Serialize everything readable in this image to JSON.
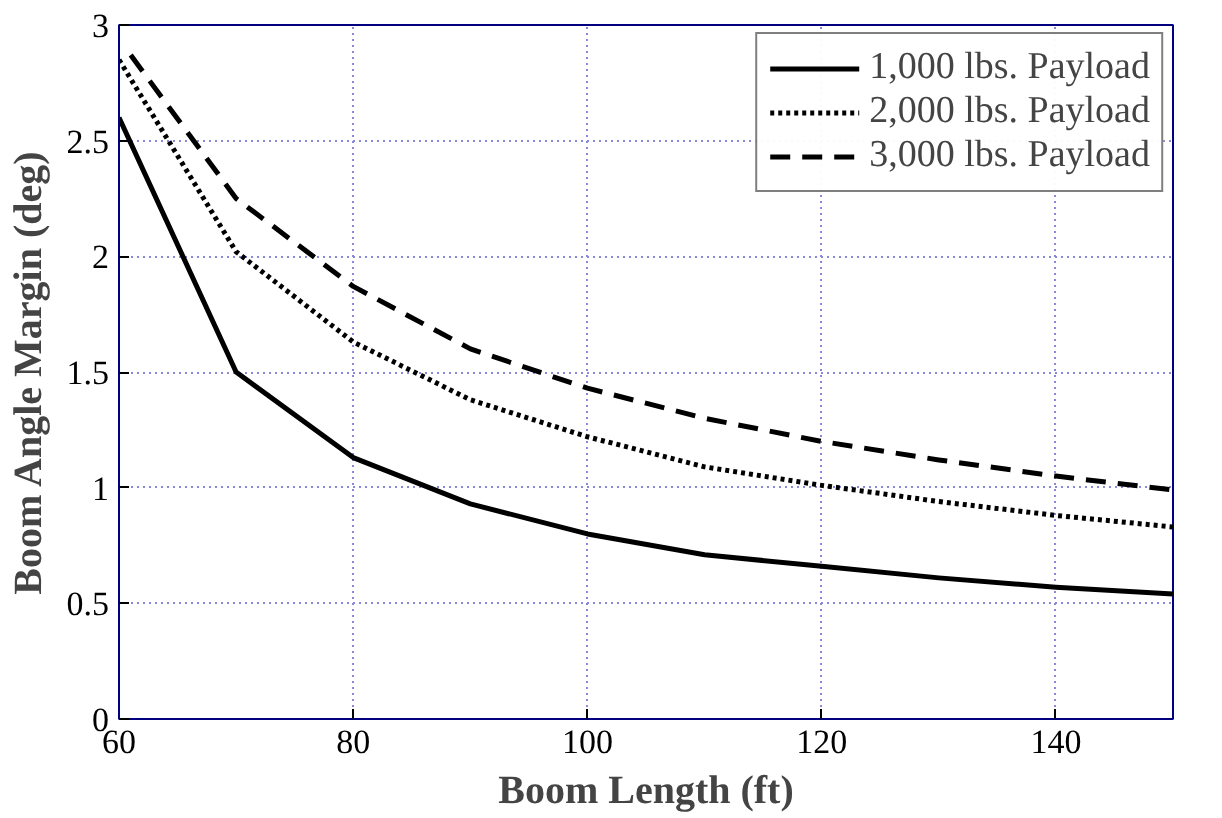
{
  "chart_data": {
    "type": "line",
    "xlabel": "Boom Length (ft)",
    "ylabel": "Boom Angle Margin (deg)",
    "xlim": [
      60,
      150
    ],
    "xticks": [
      60,
      80,
      100,
      120,
      140
    ],
    "ylim": [
      0,
      3
    ],
    "yticks": [
      0,
      0.5,
      1,
      1.5,
      2,
      2.5,
      3
    ],
    "grid": true,
    "legend": "top right",
    "marker": "none",
    "series": [
      {
        "name": "1,000 lbs. Payload",
        "color": "#000000",
        "line_style": "solid",
        "x": [
          60,
          70,
          80,
          90,
          100,
          110,
          120,
          130,
          140,
          150
        ],
        "values": [
          2.6,
          1.5,
          1.13,
          0.93,
          0.8,
          0.71,
          0.66,
          0.61,
          0.57,
          0.54
        ]
      },
      {
        "name": "2,000 lbs. Payload",
        "color": "#000000",
        "line_style": "dotted",
        "x": [
          60,
          70,
          80,
          90,
          100,
          110,
          120,
          130,
          140,
          150
        ],
        "values": [
          2.85,
          2.02,
          1.63,
          1.38,
          1.22,
          1.09,
          1.01,
          0.94,
          0.88,
          0.83
        ]
      },
      {
        "name": "3,000 lbs. Payload",
        "color": "#000000",
        "line_style": "dashed",
        "x": [
          61,
          70,
          80,
          90,
          100,
          110,
          120,
          130,
          140,
          150
        ],
        "values": [
          2.87,
          2.25,
          1.87,
          1.6,
          1.43,
          1.3,
          1.2,
          1.12,
          1.05,
          0.99
        ]
      }
    ]
  }
}
